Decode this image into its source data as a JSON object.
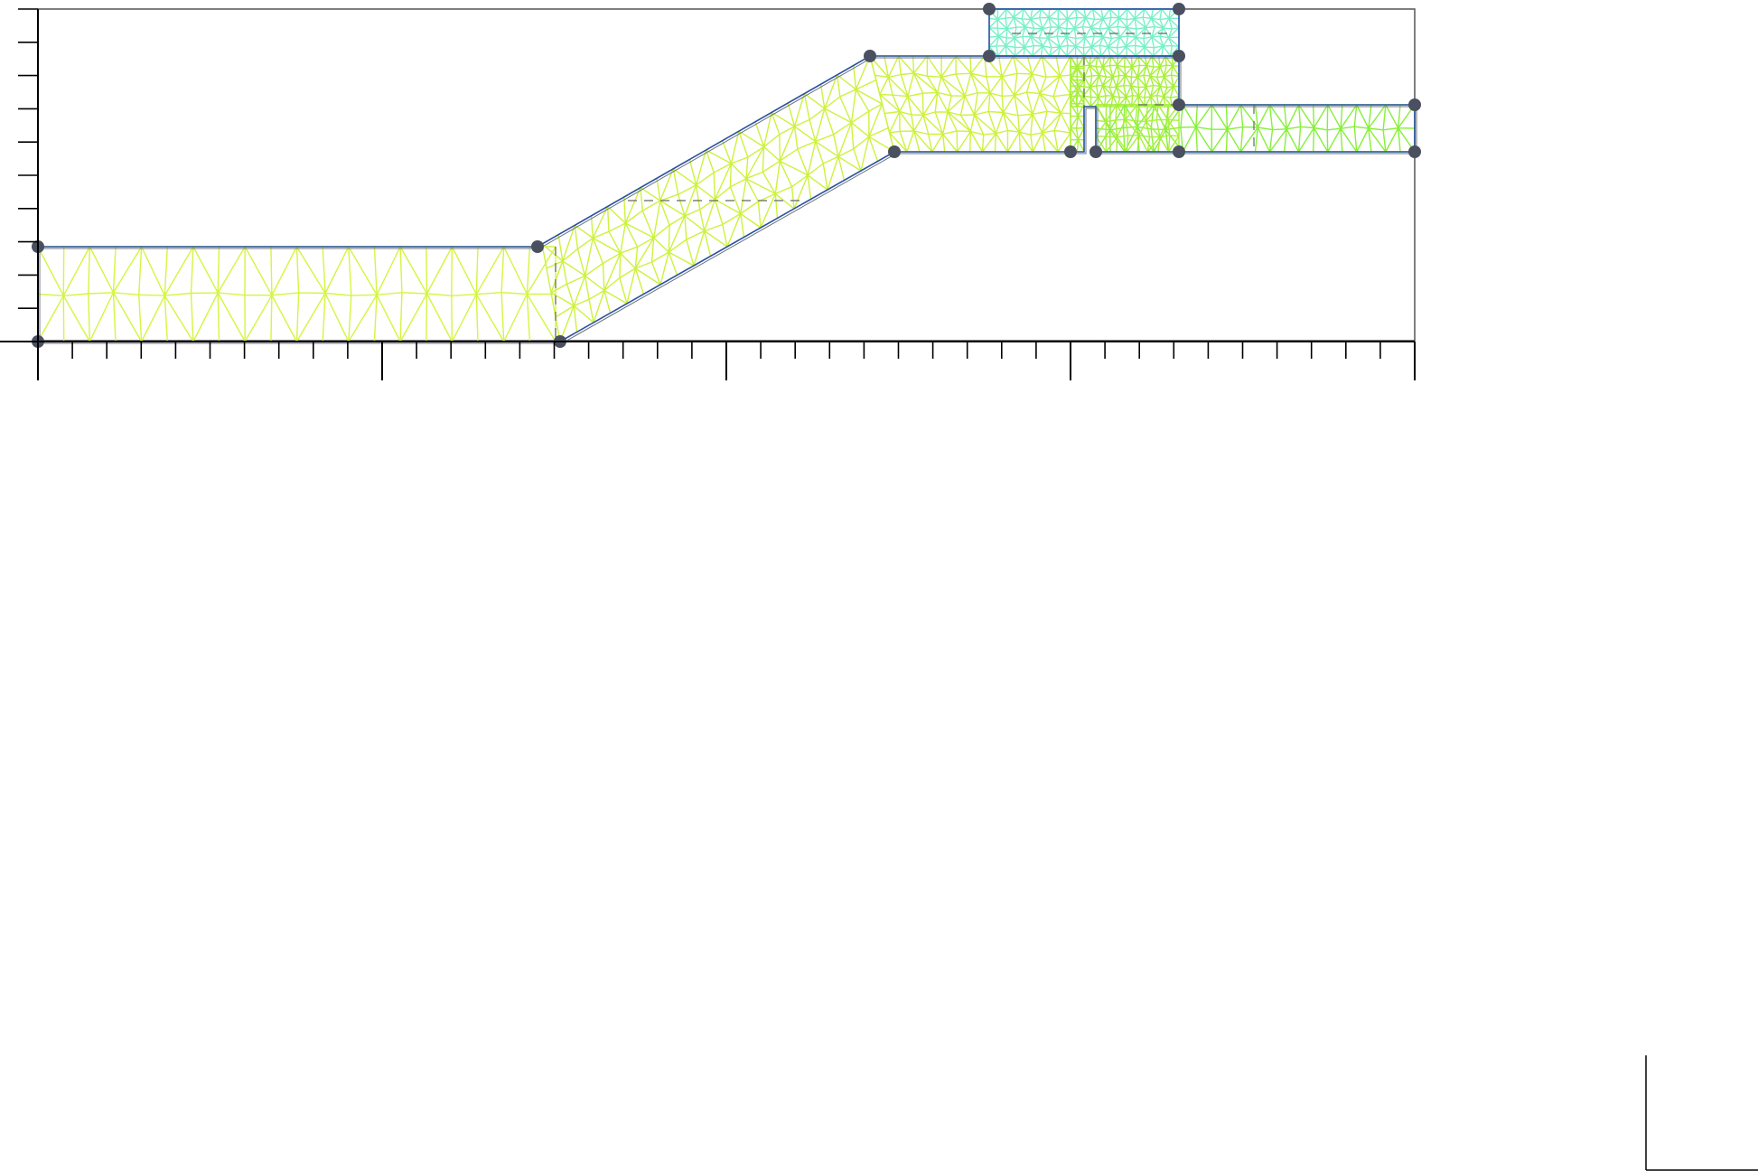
{
  "diagram": {
    "type": "finite-element-mesh",
    "mesh_colors": {
      "left_segment": "#d4f542",
      "incline": "#cdf23e",
      "upper_block": "#7af0c8",
      "junction": "#a8f03a",
      "right_segment": "#86f03a",
      "outline": "#2a50a8",
      "node": "#4a5060",
      "axis": "#000000",
      "frame": "#555555",
      "dashed": "#666666"
    },
    "node_icon": "vertex-dot-icon",
    "x_axis": {
      "major_ticks": 5,
      "minor_per_major": 10
    },
    "y_axis": {
      "minor_ticks": 10
    }
  }
}
